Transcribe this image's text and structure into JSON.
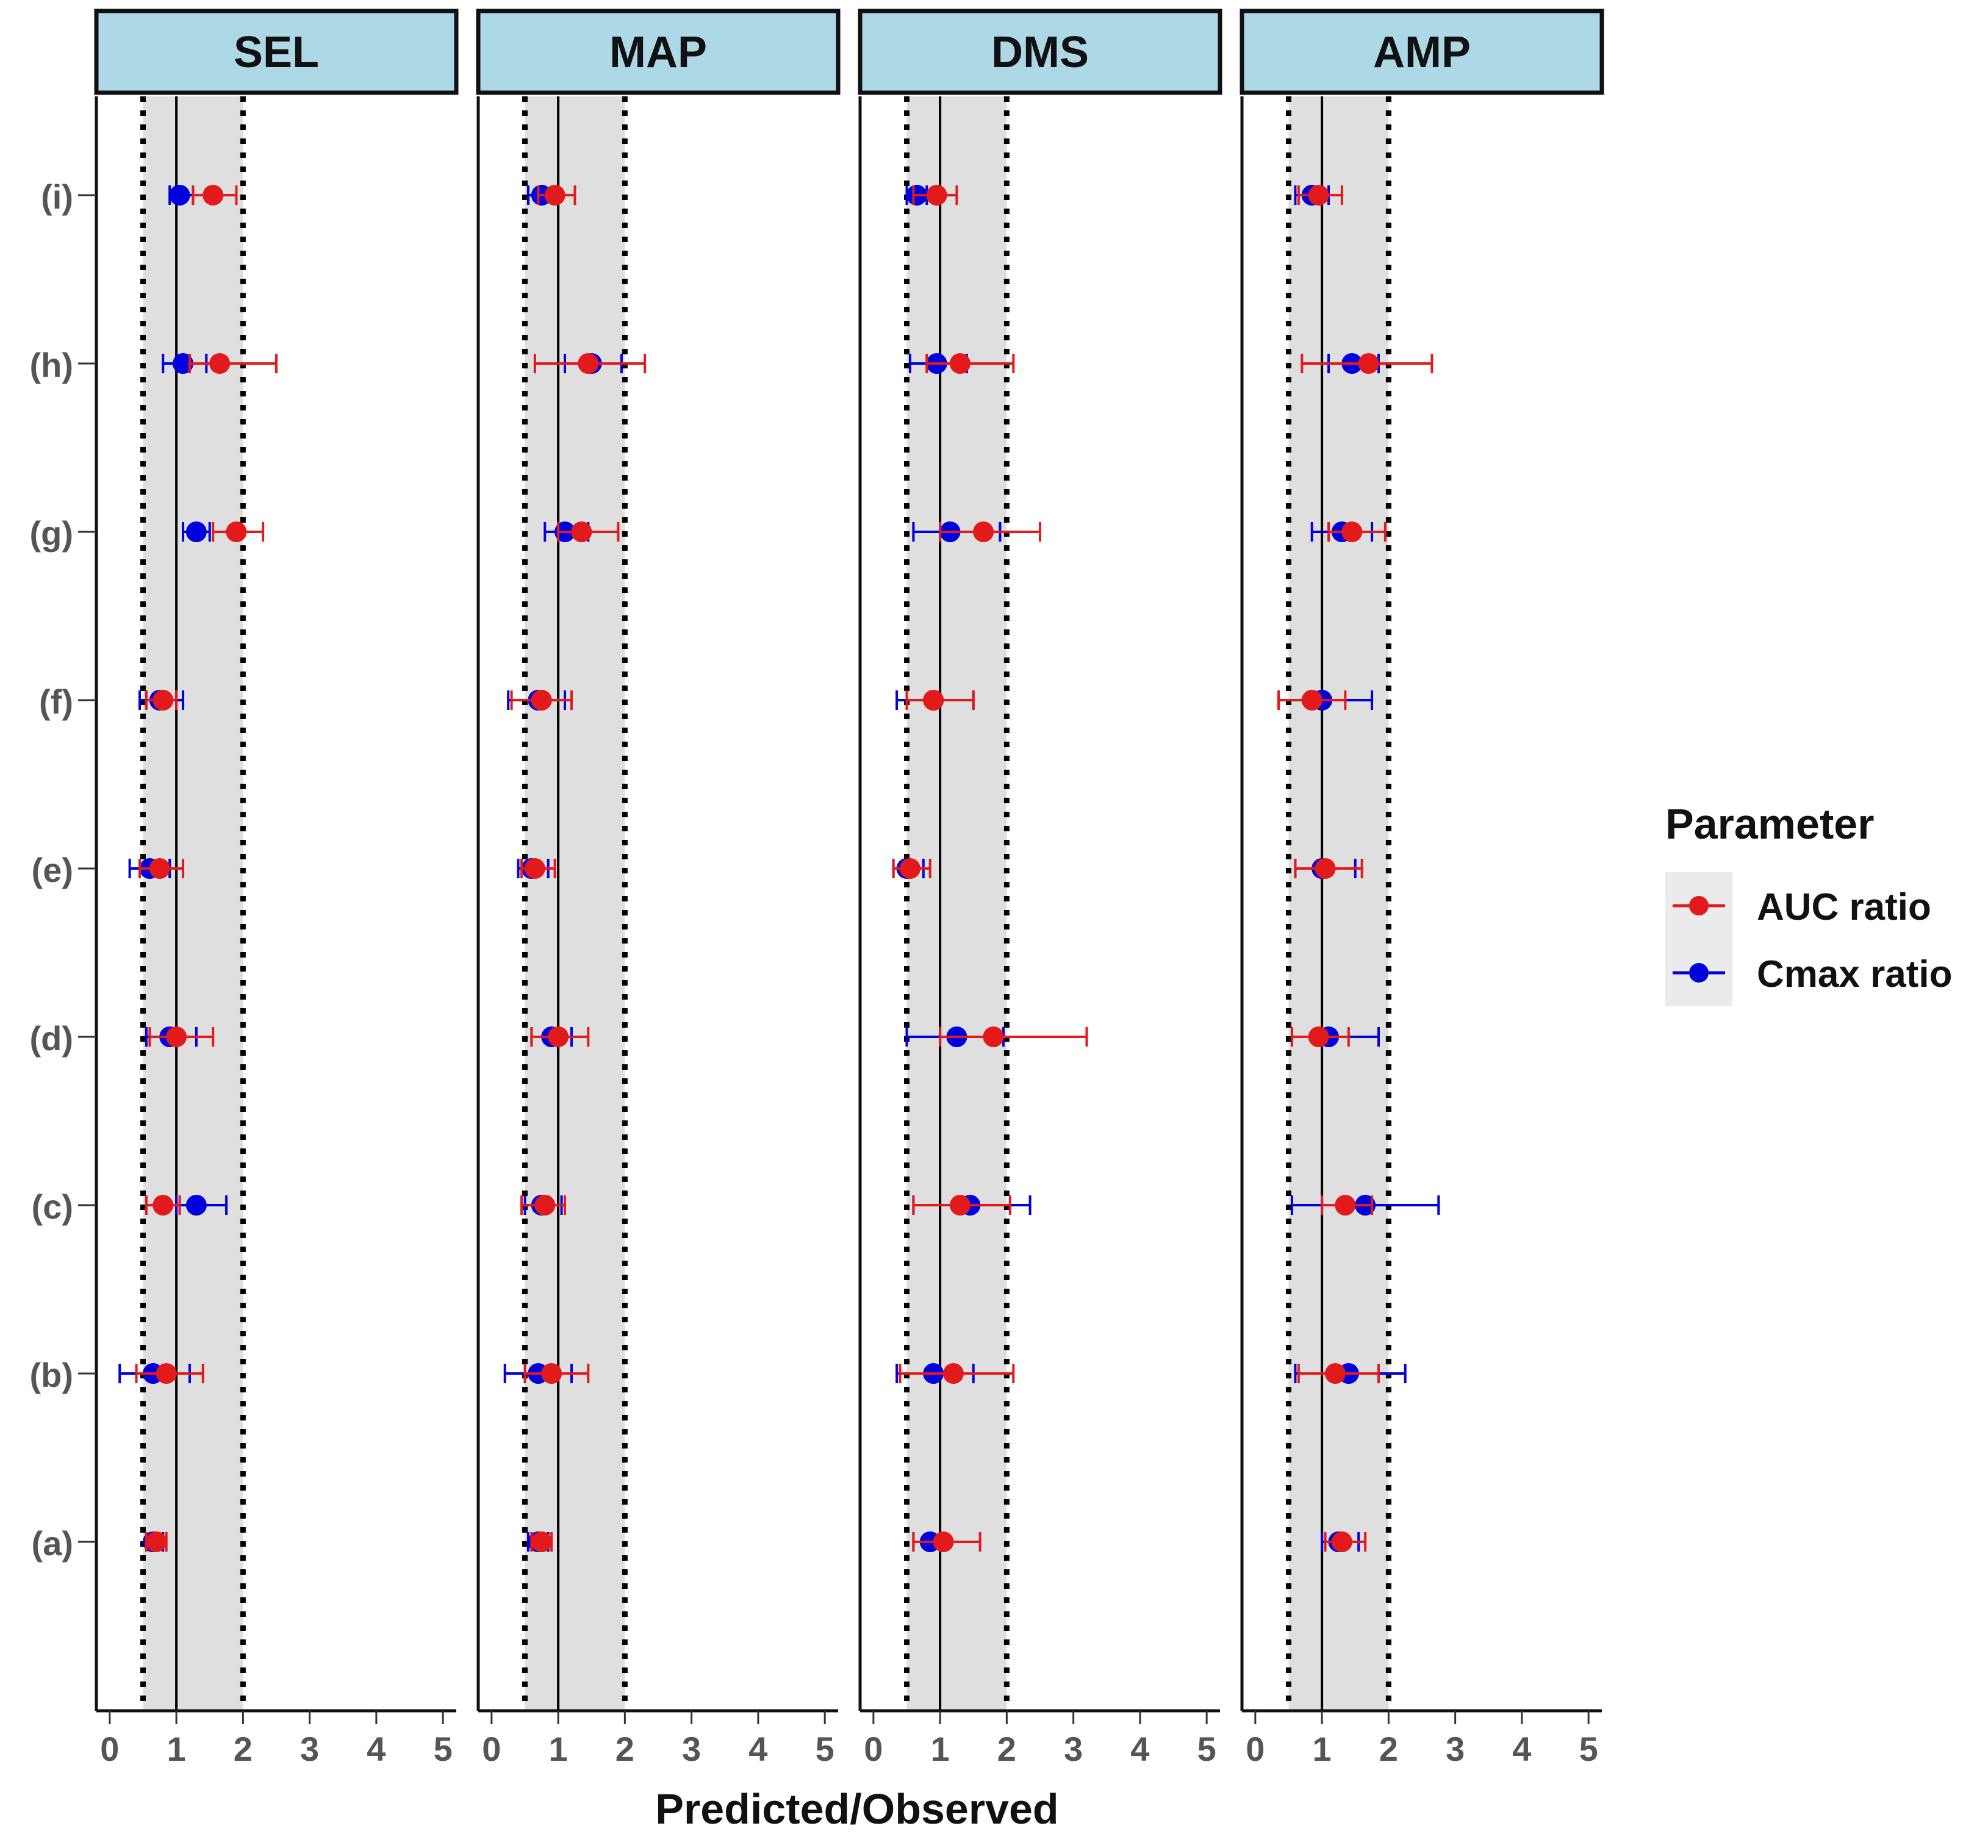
{
  "chart_data": {
    "type": "scatter",
    "subtype": "faceted forest plot",
    "xlabel": "Predicted/Observed",
    "ylabel": "",
    "xlim": [
      -0.2,
      5.2
    ],
    "xticks": [
      0,
      1,
      2,
      3,
      4,
      5
    ],
    "reference_line": 1,
    "acceptance_band": [
      0.5,
      2
    ],
    "categories": [
      "(a)",
      "(b)",
      "(c)",
      "(d)",
      "(e)",
      "(f)",
      "(g)",
      "(h)",
      "(i)"
    ],
    "legend": {
      "title": "Parameter",
      "position": "right",
      "entries": [
        {
          "name": "AUC ratio",
          "color": "#e31a1c"
        },
        {
          "name": "Cmax ratio",
          "color": "#0000dd"
        }
      ]
    },
    "panels": [
      {
        "title": "SEL",
        "series": [
          {
            "name": "AUC ratio",
            "color": "#e31a1c",
            "points": [
              {
                "cat": "(a)",
                "value": 0.7,
                "low": 0.55,
                "high": 0.85
              },
              {
                "cat": "(b)",
                "value": 0.85,
                "low": 0.4,
                "high": 1.4
              },
              {
                "cat": "(c)",
                "value": 0.8,
                "low": 0.55,
                "high": 1.05
              },
              {
                "cat": "(d)",
                "value": 1.0,
                "low": 0.6,
                "high": 1.55
              },
              {
                "cat": "(e)",
                "value": 0.75,
                "low": 0.45,
                "high": 1.1
              },
              {
                "cat": "(f)",
                "value": 0.8,
                "low": 0.55,
                "high": 1.0
              },
              {
                "cat": "(g)",
                "value": 1.9,
                "low": 1.55,
                "high": 2.3
              },
              {
                "cat": "(h)",
                "value": 1.65,
                "low": 1.2,
                "high": 2.5
              },
              {
                "cat": "(i)",
                "value": 1.55,
                "low": 1.25,
                "high": 1.9
              }
            ]
          },
          {
            "name": "Cmax ratio",
            "color": "#0000dd",
            "points": [
              {
                "cat": "(a)",
                "value": 0.65,
                "low": 0.55,
                "high": 0.8
              },
              {
                "cat": "(b)",
                "value": 0.65,
                "low": 0.15,
                "high": 1.2
              },
              {
                "cat": "(c)",
                "value": 1.3,
                "low": 1.0,
                "high": 1.75
              },
              {
                "cat": "(d)",
                "value": 0.9,
                "low": 0.55,
                "high": 1.3
              },
              {
                "cat": "(e)",
                "value": 0.6,
                "low": 0.3,
                "high": 0.9
              },
              {
                "cat": "(f)",
                "value": 0.75,
                "low": 0.45,
                "high": 1.1
              },
              {
                "cat": "(g)",
                "value": 1.3,
                "low": 1.1,
                "high": 1.5
              },
              {
                "cat": "(h)",
                "value": 1.1,
                "low": 0.8,
                "high": 1.45
              },
              {
                "cat": "(i)",
                "value": 1.05,
                "low": 0.9,
                "high": 1.25
              }
            ]
          }
        ]
      },
      {
        "title": "MAP",
        "series": [
          {
            "name": "AUC ratio",
            "color": "#e31a1c",
            "points": [
              {
                "cat": "(a)",
                "value": 0.75,
                "low": 0.6,
                "high": 0.9
              },
              {
                "cat": "(b)",
                "value": 0.9,
                "low": 0.5,
                "high": 1.45
              },
              {
                "cat": "(c)",
                "value": 0.8,
                "low": 0.45,
                "high": 1.1
              },
              {
                "cat": "(d)",
                "value": 1.0,
                "low": 0.6,
                "high": 1.45
              },
              {
                "cat": "(e)",
                "value": 0.65,
                "low": 0.45,
                "high": 0.95
              },
              {
                "cat": "(f)",
                "value": 0.75,
                "low": 0.3,
                "high": 1.2
              },
              {
                "cat": "(g)",
                "value": 1.35,
                "low": 1.0,
                "high": 1.9
              },
              {
                "cat": "(h)",
                "value": 1.45,
                "low": 0.65,
                "high": 2.3
              },
              {
                "cat": "(i)",
                "value": 0.95,
                "low": 0.7,
                "high": 1.25
              }
            ]
          },
          {
            "name": "Cmax ratio",
            "color": "#0000dd",
            "points": [
              {
                "cat": "(a)",
                "value": 0.7,
                "low": 0.55,
                "high": 0.85
              },
              {
                "cat": "(b)",
                "value": 0.7,
                "low": 0.2,
                "high": 1.2
              },
              {
                "cat": "(c)",
                "value": 0.75,
                "low": 0.5,
                "high": 1.05
              },
              {
                "cat": "(d)",
                "value": 0.9,
                "low": 0.6,
                "high": 1.2
              },
              {
                "cat": "(e)",
                "value": 0.6,
                "low": 0.4,
                "high": 0.85
              },
              {
                "cat": "(f)",
                "value": 0.7,
                "low": 0.25,
                "high": 1.1
              },
              {
                "cat": "(g)",
                "value": 1.1,
                "low": 0.8,
                "high": 1.45
              },
              {
                "cat": "(h)",
                "value": 1.5,
                "low": 1.1,
                "high": 1.95
              },
              {
                "cat": "(i)",
                "value": 0.75,
                "low": 0.55,
                "high": 1.0
              }
            ]
          }
        ]
      },
      {
        "title": "DMS",
        "series": [
          {
            "name": "AUC ratio",
            "color": "#e31a1c",
            "points": [
              {
                "cat": "(a)",
                "value": 1.05,
                "low": 0.6,
                "high": 1.6
              },
              {
                "cat": "(b)",
                "value": 1.2,
                "low": 0.4,
                "high": 2.1
              },
              {
                "cat": "(c)",
                "value": 1.3,
                "low": 0.6,
                "high": 2.05
              },
              {
                "cat": "(d)",
                "value": 1.8,
                "low": 1.0,
                "high": 3.2
              },
              {
                "cat": "(e)",
                "value": 0.55,
                "low": 0.3,
                "high": 0.85
              },
              {
                "cat": "(f)",
                "value": 0.9,
                "low": 0.5,
                "high": 1.5
              },
              {
                "cat": "(g)",
                "value": 1.65,
                "low": 1.0,
                "high": 2.5
              },
              {
                "cat": "(h)",
                "value": 1.3,
                "low": 0.8,
                "high": 2.1
              },
              {
                "cat": "(i)",
                "value": 0.95,
                "low": 0.6,
                "high": 1.25
              }
            ]
          },
          {
            "name": "Cmax ratio",
            "color": "#0000dd",
            "points": [
              {
                "cat": "(a)",
                "value": 0.85,
                "low": 0.6,
                "high": 1.05
              },
              {
                "cat": "(b)",
                "value": 0.9,
                "low": 0.35,
                "high": 1.5
              },
              {
                "cat": "(c)",
                "value": 1.45,
                "low": 0.6,
                "high": 2.35
              },
              {
                "cat": "(d)",
                "value": 1.25,
                "low": 0.5,
                "high": 1.95
              },
              {
                "cat": "(e)",
                "value": 0.5,
                "low": 0.3,
                "high": 0.75
              },
              {
                "cat": "(f)",
                "value": 0.9,
                "low": 0.35,
                "high": 1.5
              },
              {
                "cat": "(g)",
                "value": 1.15,
                "low": 0.6,
                "high": 1.9
              },
              {
                "cat": "(h)",
                "value": 0.95,
                "low": 0.55,
                "high": 1.4
              },
              {
                "cat": "(i)",
                "value": 0.65,
                "low": 0.5,
                "high": 0.8
              }
            ]
          }
        ]
      },
      {
        "title": "AMP",
        "series": [
          {
            "name": "AUC ratio",
            "color": "#e31a1c",
            "points": [
              {
                "cat": "(a)",
                "value": 1.3,
                "low": 1.05,
                "high": 1.65
              },
              {
                "cat": "(b)",
                "value": 1.2,
                "low": 0.65,
                "high": 1.85
              },
              {
                "cat": "(c)",
                "value": 1.35,
                "low": 1.0,
                "high": 1.75
              },
              {
                "cat": "(d)",
                "value": 0.95,
                "low": 0.55,
                "high": 1.4
              },
              {
                "cat": "(e)",
                "value": 1.05,
                "low": 0.6,
                "high": 1.6
              },
              {
                "cat": "(f)",
                "value": 0.85,
                "low": 0.35,
                "high": 1.35
              },
              {
                "cat": "(g)",
                "value": 1.45,
                "low": 1.1,
                "high": 1.95
              },
              {
                "cat": "(h)",
                "value": 1.7,
                "low": 0.7,
                "high": 2.65
              },
              {
                "cat": "(i)",
                "value": 0.95,
                "low": 0.65,
                "high": 1.3
              }
            ]
          },
          {
            "name": "Cmax ratio",
            "color": "#0000dd",
            "points": [
              {
                "cat": "(a)",
                "value": 1.25,
                "low": 1.0,
                "high": 1.55
              },
              {
                "cat": "(b)",
                "value": 1.4,
                "low": 0.6,
                "high": 2.25
              },
              {
                "cat": "(c)",
                "value": 1.65,
                "low": 0.55,
                "high": 2.75
              },
              {
                "cat": "(d)",
                "value": 1.1,
                "low": 0.55,
                "high": 1.85
              },
              {
                "cat": "(e)",
                "value": 1.0,
                "low": 0.6,
                "high": 1.5
              },
              {
                "cat": "(f)",
                "value": 1.0,
                "low": 0.35,
                "high": 1.75
              },
              {
                "cat": "(g)",
                "value": 1.3,
                "low": 0.85,
                "high": 1.75
              },
              {
                "cat": "(h)",
                "value": 1.45,
                "low": 1.1,
                "high": 1.85
              },
              {
                "cat": "(i)",
                "value": 0.85,
                "low": 0.6,
                "high": 1.1
              }
            ]
          }
        ]
      }
    ]
  }
}
